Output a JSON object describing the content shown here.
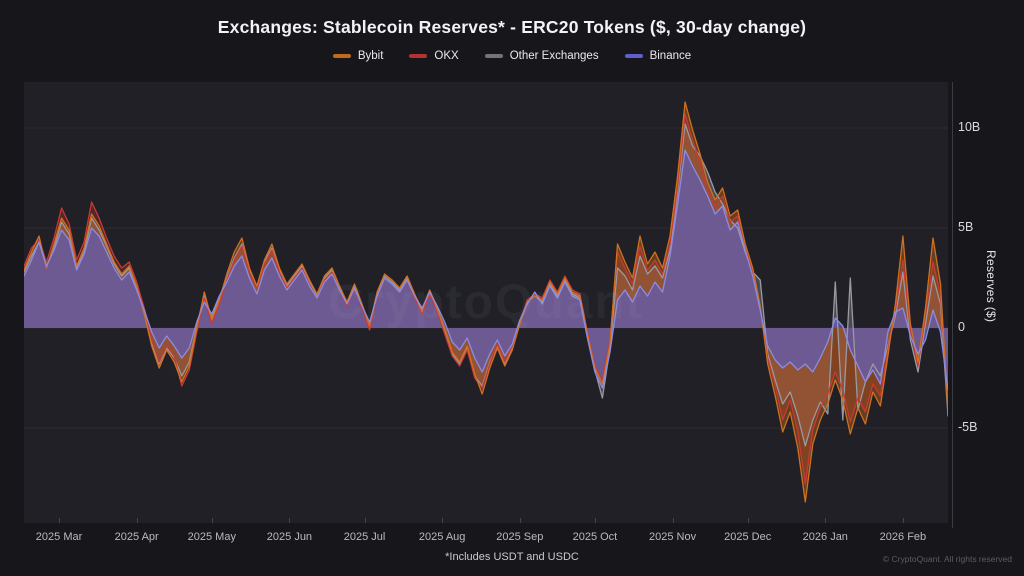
{
  "title": "Exchanges: Stablecoin Reserves* - ERC20 Tokens ($, 30-day change)",
  "watermark": "CryptoQuant",
  "footnote": "*Includes USDT and USDC",
  "copyright": "© CryptoQuant. All rights reserved",
  "colors": {
    "background": "#17171b",
    "plot_background": "#202026",
    "bybit": "#bf6a1d",
    "okx": "#b23230",
    "other_exchanges": "#73737b",
    "binance": "#5e5ecf"
  },
  "legend": [
    {
      "label": "Bybit",
      "color": "#bf6a1d"
    },
    {
      "label": "OKX",
      "color": "#b23230"
    },
    {
      "label": "Other Exchanges",
      "color": "#73737b"
    },
    {
      "label": "Binance",
      "color": "#5e5ecf"
    }
  ],
  "y_axis": {
    "title": "Reserves ($)",
    "ticks": [
      {
        "value": 10,
        "label": "10B"
      },
      {
        "value": 5,
        "label": "5B"
      },
      {
        "value": 0,
        "label": "0"
      },
      {
        "value": -5,
        "label": "-5B"
      }
    ]
  },
  "x_axis": {
    "total_days": 369,
    "ticks": [
      {
        "day": 14,
        "label": "2025 Mar"
      },
      {
        "day": 45,
        "label": "2025 Apr"
      },
      {
        "day": 75,
        "label": "2025 May"
      },
      {
        "day": 106,
        "label": "2025 Jun"
      },
      {
        "day": 136,
        "label": "2025 Jul"
      },
      {
        "day": 167,
        "label": "2025 Aug"
      },
      {
        "day": 198,
        "label": "2025 Sep"
      },
      {
        "day": 228,
        "label": "2025 Oct"
      },
      {
        "day": 259,
        "label": "2025 Nov"
      },
      {
        "day": 289,
        "label": "2025 Dec"
      },
      {
        "day": 320,
        "label": "2026 Jan"
      },
      {
        "day": 351,
        "label": "2026 Feb"
      }
    ]
  },
  "chart_data": {
    "type": "area",
    "title": "Exchanges: Stablecoin Reserves* - ERC20 Tokens ($, 30-day change)",
    "ylabel": "Reserves ($)",
    "unit": "billion USD (30-day change)",
    "baseline": 0,
    "ylim": [
      -9.75,
      12.3
    ],
    "grid": "horizontal",
    "legend_position": "top",
    "x_step_days": 3,
    "x_range_labels": [
      "2025 Mar",
      "2026 Feb"
    ],
    "series": [
      {
        "name": "Other Exchanges",
        "line": "#9a9aa2",
        "fill": "rgba(130,130,142,0.42)",
        "values": [
          2.8,
          3.6,
          4.3,
          3.1,
          4.0,
          5.3,
          4.7,
          3.0,
          3.8,
          5.5,
          4.9,
          4.1,
          3.2,
          2.6,
          3.0,
          2.0,
          0.8,
          -0.8,
          -1.8,
          -1.0,
          -1.5,
          -2.4,
          -1.7,
          0.1,
          1.6,
          0.5,
          1.5,
          2.5,
          3.5,
          4.2,
          2.9,
          2.0,
          3.3,
          4.0,
          2.9,
          2.1,
          2.6,
          3.1,
          2.3,
          1.6,
          2.5,
          2.9,
          2.0,
          1.2,
          2.1,
          1.1,
          0.0,
          1.7,
          2.6,
          2.3,
          1.9,
          2.5,
          1.6,
          0.8,
          1.8,
          0.9,
          -0.2,
          -1.3,
          -1.8,
          -1.0,
          -2.4,
          -2.9,
          -1.7,
          -0.9,
          -1.8,
          -1.0,
          0.2,
          1.3,
          1.6,
          1.3,
          2.2,
          1.6,
          2.4,
          1.7,
          1.5,
          -0.4,
          -2.1,
          -3.5,
          -1.0,
          3.0,
          2.6,
          1.9,
          3.6,
          2.7,
          3.1,
          2.5,
          3.9,
          6.8,
          10.2,
          9.1,
          8.6,
          7.8,
          6.8,
          6.2,
          5.4,
          5.0,
          3.8,
          2.8,
          2.4,
          -1.3,
          -2.6,
          -3.8,
          -3.2,
          -4.4,
          -5.9,
          -4.6,
          -3.7,
          -4.3,
          2.3,
          -4.6,
          2.5,
          -4.1,
          -2.7,
          -1.8,
          -2.4,
          -0.9,
          0.6,
          2.8,
          -0.6,
          -2.2,
          0.2,
          2.6,
          1.2,
          -4.4
        ]
      },
      {
        "name": "OKX",
        "line": "#c63a35",
        "fill": "rgba(185,50,50,0.33)",
        "values": [
          3.1,
          4.0,
          4.4,
          3.3,
          4.5,
          6.0,
          5.2,
          3.4,
          4.3,
          6.3,
          5.5,
          4.5,
          3.6,
          3.0,
          3.3,
          2.3,
          1.0,
          -0.6,
          -1.7,
          -0.9,
          -1.4,
          -2.9,
          -2.1,
          -0.2,
          1.5,
          0.2,
          1.2,
          2.4,
          3.4,
          4.1,
          2.8,
          2.0,
          3.2,
          3.9,
          2.8,
          2.0,
          2.5,
          3.0,
          2.2,
          1.5,
          2.4,
          2.8,
          1.9,
          1.1,
          2.0,
          1.0,
          -0.1,
          1.6,
          2.5,
          2.2,
          1.8,
          2.4,
          1.5,
          0.7,
          1.7,
          0.8,
          -0.3,
          -1.4,
          -1.9,
          -1.1,
          -2.5,
          -3.0,
          -1.8,
          -0.8,
          -1.7,
          -0.9,
          0.3,
          1.4,
          1.7,
          1.5,
          2.4,
          1.8,
          2.6,
          1.9,
          1.7,
          -0.2,
          -1.9,
          -2.6,
          -0.6,
          3.8,
          3.0,
          2.2,
          4.1,
          2.9,
          3.4,
          2.7,
          4.2,
          7.1,
          10.7,
          9.4,
          8.3,
          6.9,
          6.1,
          6.6,
          5.3,
          5.6,
          4.0,
          2.8,
          1.0,
          -1.5,
          -2.9,
          -4.6,
          -3.6,
          -5.2,
          -7.8,
          -5.1,
          -4.0,
          -3.3,
          -2.2,
          -3.1,
          -4.7,
          -3.5,
          -4.2,
          -2.8,
          -3.4,
          -1.1,
          0.9,
          3.4,
          -0.1,
          -1.9,
          0.7,
          3.3,
          1.6,
          -3.8
        ]
      },
      {
        "name": "Bybit",
        "line": "#d1701f",
        "fill": "rgba(195,108,26,0.42)",
        "values": [
          2.9,
          3.8,
          4.6,
          3.0,
          4.2,
          5.5,
          4.9,
          3.1,
          4.0,
          5.7,
          5.1,
          4.2,
          3.3,
          2.7,
          3.1,
          2.1,
          0.7,
          -0.9,
          -2.0,
          -1.1,
          -1.7,
          -2.7,
          -1.9,
          0.0,
          1.8,
          0.4,
          1.4,
          2.7,
          3.8,
          4.5,
          3.0,
          2.1,
          3.4,
          4.2,
          3.0,
          2.2,
          2.7,
          3.2,
          2.4,
          1.7,
          2.6,
          3.0,
          2.1,
          1.3,
          2.2,
          1.2,
          0.1,
          1.8,
          2.7,
          2.4,
          2.0,
          2.6,
          1.7,
          0.9,
          1.9,
          1.0,
          0.0,
          -1.2,
          -1.7,
          -0.9,
          -2.3,
          -3.3,
          -2.0,
          -1.0,
          -1.9,
          -1.1,
          0.2,
          1.3,
          1.6,
          1.4,
          2.3,
          1.7,
          2.5,
          1.8,
          1.6,
          -0.3,
          -2.0,
          -2.8,
          -0.8,
          4.2,
          3.3,
          2.5,
          4.6,
          3.2,
          3.8,
          3.0,
          4.6,
          7.6,
          11.3,
          9.9,
          8.7,
          7.3,
          6.4,
          7.0,
          5.6,
          5.9,
          4.2,
          3.0,
          1.1,
          -1.8,
          -3.4,
          -5.2,
          -4.2,
          -6.0,
          -8.7,
          -5.8,
          -4.6,
          -3.8,
          -2.6,
          -3.6,
          -5.3,
          -4.0,
          -4.8,
          -3.2,
          -3.9,
          -1.4,
          1.2,
          4.6,
          0.2,
          -1.7,
          1.0,
          4.5,
          2.2,
          -4.2
        ]
      },
      {
        "name": "Binance",
        "line": "#8c8ce4",
        "fill": "rgba(99,92,173,0.78)",
        "values": [
          2.6,
          3.4,
          4.3,
          3.1,
          3.9,
          4.9,
          4.4,
          2.9,
          3.7,
          5.0,
          4.6,
          3.8,
          3.0,
          2.4,
          2.8,
          1.9,
          0.9,
          -0.2,
          -1.0,
          -0.4,
          -0.9,
          -1.5,
          -1.0,
          0.3,
          1.3,
          0.7,
          1.6,
          2.3,
          3.1,
          3.6,
          2.5,
          1.7,
          2.9,
          3.5,
          2.6,
          1.9,
          2.4,
          2.9,
          2.1,
          1.5,
          2.3,
          2.7,
          1.9,
          1.2,
          2.0,
          1.1,
          0.3,
          1.6,
          2.5,
          2.2,
          1.8,
          2.4,
          1.6,
          1.0,
          1.8,
          1.1,
          0.3,
          -0.7,
          -1.1,
          -0.5,
          -1.5,
          -2.2,
          -1.3,
          -0.6,
          -1.4,
          -0.8,
          0.4,
          1.2,
          1.8,
          1.2,
          2.1,
          1.5,
          2.3,
          1.6,
          1.4,
          -0.5,
          -2.2,
          -3.0,
          -1.2,
          1.4,
          1.9,
          1.3,
          2.1,
          1.6,
          2.3,
          1.8,
          3.6,
          6.2,
          8.9,
          8.1,
          7.4,
          6.6,
          5.7,
          6.1,
          4.9,
          5.3,
          3.9,
          2.6,
          0.9,
          -0.9,
          -1.6,
          -2.0,
          -1.7,
          -2.1,
          -1.8,
          -2.2,
          -1.5,
          -0.7,
          0.5,
          0.1,
          -1.1,
          -1.9,
          -2.7,
          -2.1,
          -2.8,
          -0.2,
          0.8,
          1.0,
          -0.4,
          -1.3,
          -0.6,
          0.9,
          -0.2,
          -3.1
        ]
      }
    ]
  }
}
